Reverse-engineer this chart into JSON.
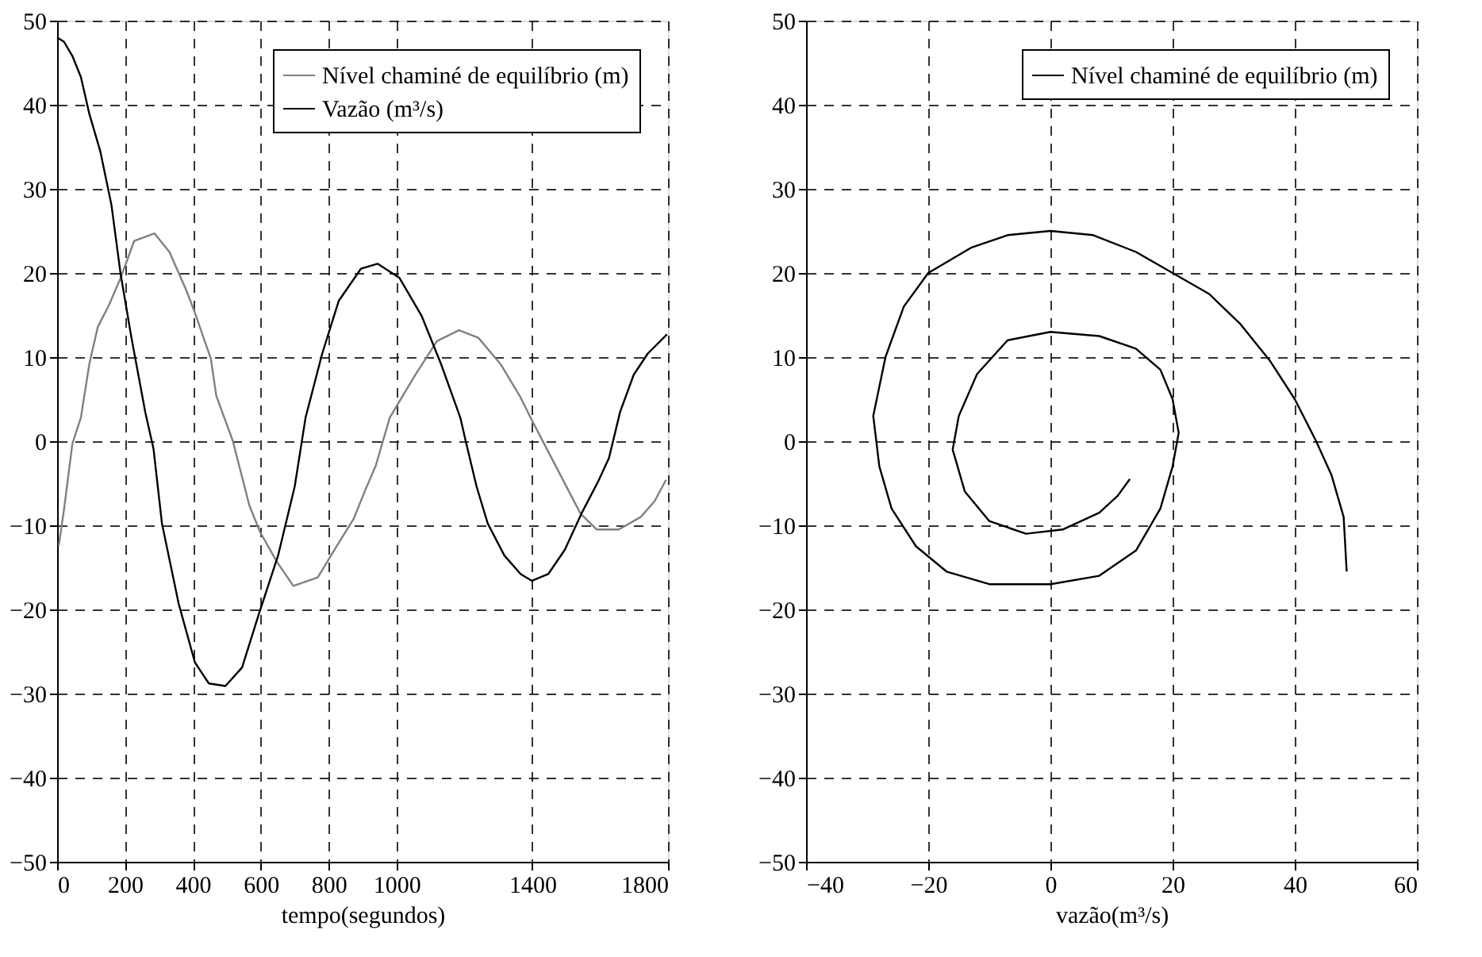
{
  "chart_data": [
    {
      "type": "line",
      "xlabel": "tempo(segundos)",
      "xlim": [
        0,
        1800
      ],
      "ylim": [
        -50,
        50
      ],
      "xticks": [
        0,
        200,
        400,
        600,
        800,
        1000,
        1400,
        1800
      ],
      "yticks": [
        -50,
        -40,
        -30,
        -20,
        -10,
        0,
        10,
        20,
        30,
        40,
        50
      ],
      "grid": true,
      "legend": "top right",
      "line_style": "solid",
      "marker": "none",
      "series": [
        {
          "name": "Nível chaminé de equilíbrio (m)",
          "color": "#808080",
          "x": [
            5,
            21,
            45,
            70,
            95,
            120,
            153,
            187,
            227,
            287,
            331,
            380,
            404,
            453,
            469,
            518,
            566,
            598,
            647,
            696,
            768,
            825,
            874,
            906,
            939,
            980,
            1054,
            1119,
            1184,
            1241,
            1306,
            1363,
            1395,
            1444,
            1493,
            1542,
            1590,
            1655,
            1720,
            1761,
            1794
          ],
          "values": [
            -12.4,
            -7.9,
            -0.3,
            2.8,
            9.2,
            13.6,
            16.2,
            19.4,
            23.8,
            24.7,
            22.5,
            18,
            15.5,
            9.8,
            5.4,
            0,
            -7.6,
            -10.8,
            -14.3,
            -17.2,
            -16.2,
            -12.4,
            -9.2,
            -6,
            -2.9,
            2.8,
            7.8,
            11.9,
            13.2,
            12.3,
            9.2,
            5.4,
            2.8,
            -1,
            -4.8,
            -8.6,
            -10.5,
            -10.5,
            -9,
            -7.1,
            -4.6
          ]
        },
        {
          "name": "Vazão (m³/s)",
          "color": "#000000",
          "x": [
            0,
            20,
            45,
            70,
            95,
            127,
            160,
            187,
            219,
            260,
            284,
            309,
            358,
            406,
            447,
            496,
            545,
            594,
            651,
            700,
            732,
            781,
            830,
            895,
            944,
            1009,
            1074,
            1131,
            1188,
            1204,
            1236,
            1269,
            1318,
            1366,
            1399,
            1447,
            1496,
            1545,
            1594,
            1626,
            1659,
            1699,
            1740,
            1797
          ],
          "values": [
            48,
            47.5,
            45.8,
            43.3,
            38.9,
            34.5,
            28.1,
            19.9,
            12.3,
            3.4,
            -0.9,
            -9.8,
            -19.3,
            -26.3,
            -28.8,
            -29.1,
            -26.9,
            -20.6,
            -13.6,
            -5.4,
            2.8,
            10.4,
            16.7,
            20.5,
            21.1,
            19.4,
            14.9,
            9.2,
            2.8,
            0,
            -5.4,
            -9.8,
            -13.6,
            -15.8,
            -16.6,
            -15.8,
            -12.9,
            -8.6,
            -4.8,
            -2,
            3.5,
            7.9,
            10.4,
            12.7
          ]
        }
      ]
    },
    {
      "type": "line",
      "xlabel": "vazão(m³/s)",
      "xlim": [
        -40,
        60
      ],
      "ylim": [
        -50,
        50
      ],
      "xticks": [
        -40,
        -20,
        0,
        20,
        40,
        60
      ],
      "yticks": [
        -50,
        -40,
        -30,
        -20,
        -10,
        0,
        10,
        20,
        30,
        40,
        50
      ],
      "grid": true,
      "legend": "top right",
      "line_style": "solid",
      "marker": "none",
      "series": [
        {
          "name": "Nível chaminé de equilíbrio (m)",
          "color": "#000000",
          "x": [
            48.5,
            48,
            46,
            43.5,
            40,
            36,
            31,
            26,
            20,
            14,
            7,
            0,
            -7,
            -13,
            -20,
            -24,
            -27,
            -29,
            -28,
            -26,
            -22,
            -17,
            -10,
            0,
            8,
            14,
            18,
            20,
            21,
            20,
            18,
            14,
            8,
            0,
            -7,
            -12,
            -15,
            -16,
            -14,
            -10,
            -4,
            2,
            8,
            11,
            13
          ],
          "values": [
            -15.5,
            -9,
            -4,
            0,
            5,
            9.5,
            14,
            17.5,
            20,
            22.5,
            24.5,
            25,
            24.5,
            23,
            20,
            16,
            10,
            3,
            -3,
            -8,
            -12.5,
            -15.5,
            -17,
            -17,
            -16,
            -13,
            -8,
            -3,
            1,
            5,
            8.5,
            11,
            12.5,
            13,
            12,
            8,
            3,
            -1,
            -6,
            -9.5,
            -11,
            -10.5,
            -8.5,
            -6.5,
            -4.5
          ]
        }
      ]
    }
  ]
}
